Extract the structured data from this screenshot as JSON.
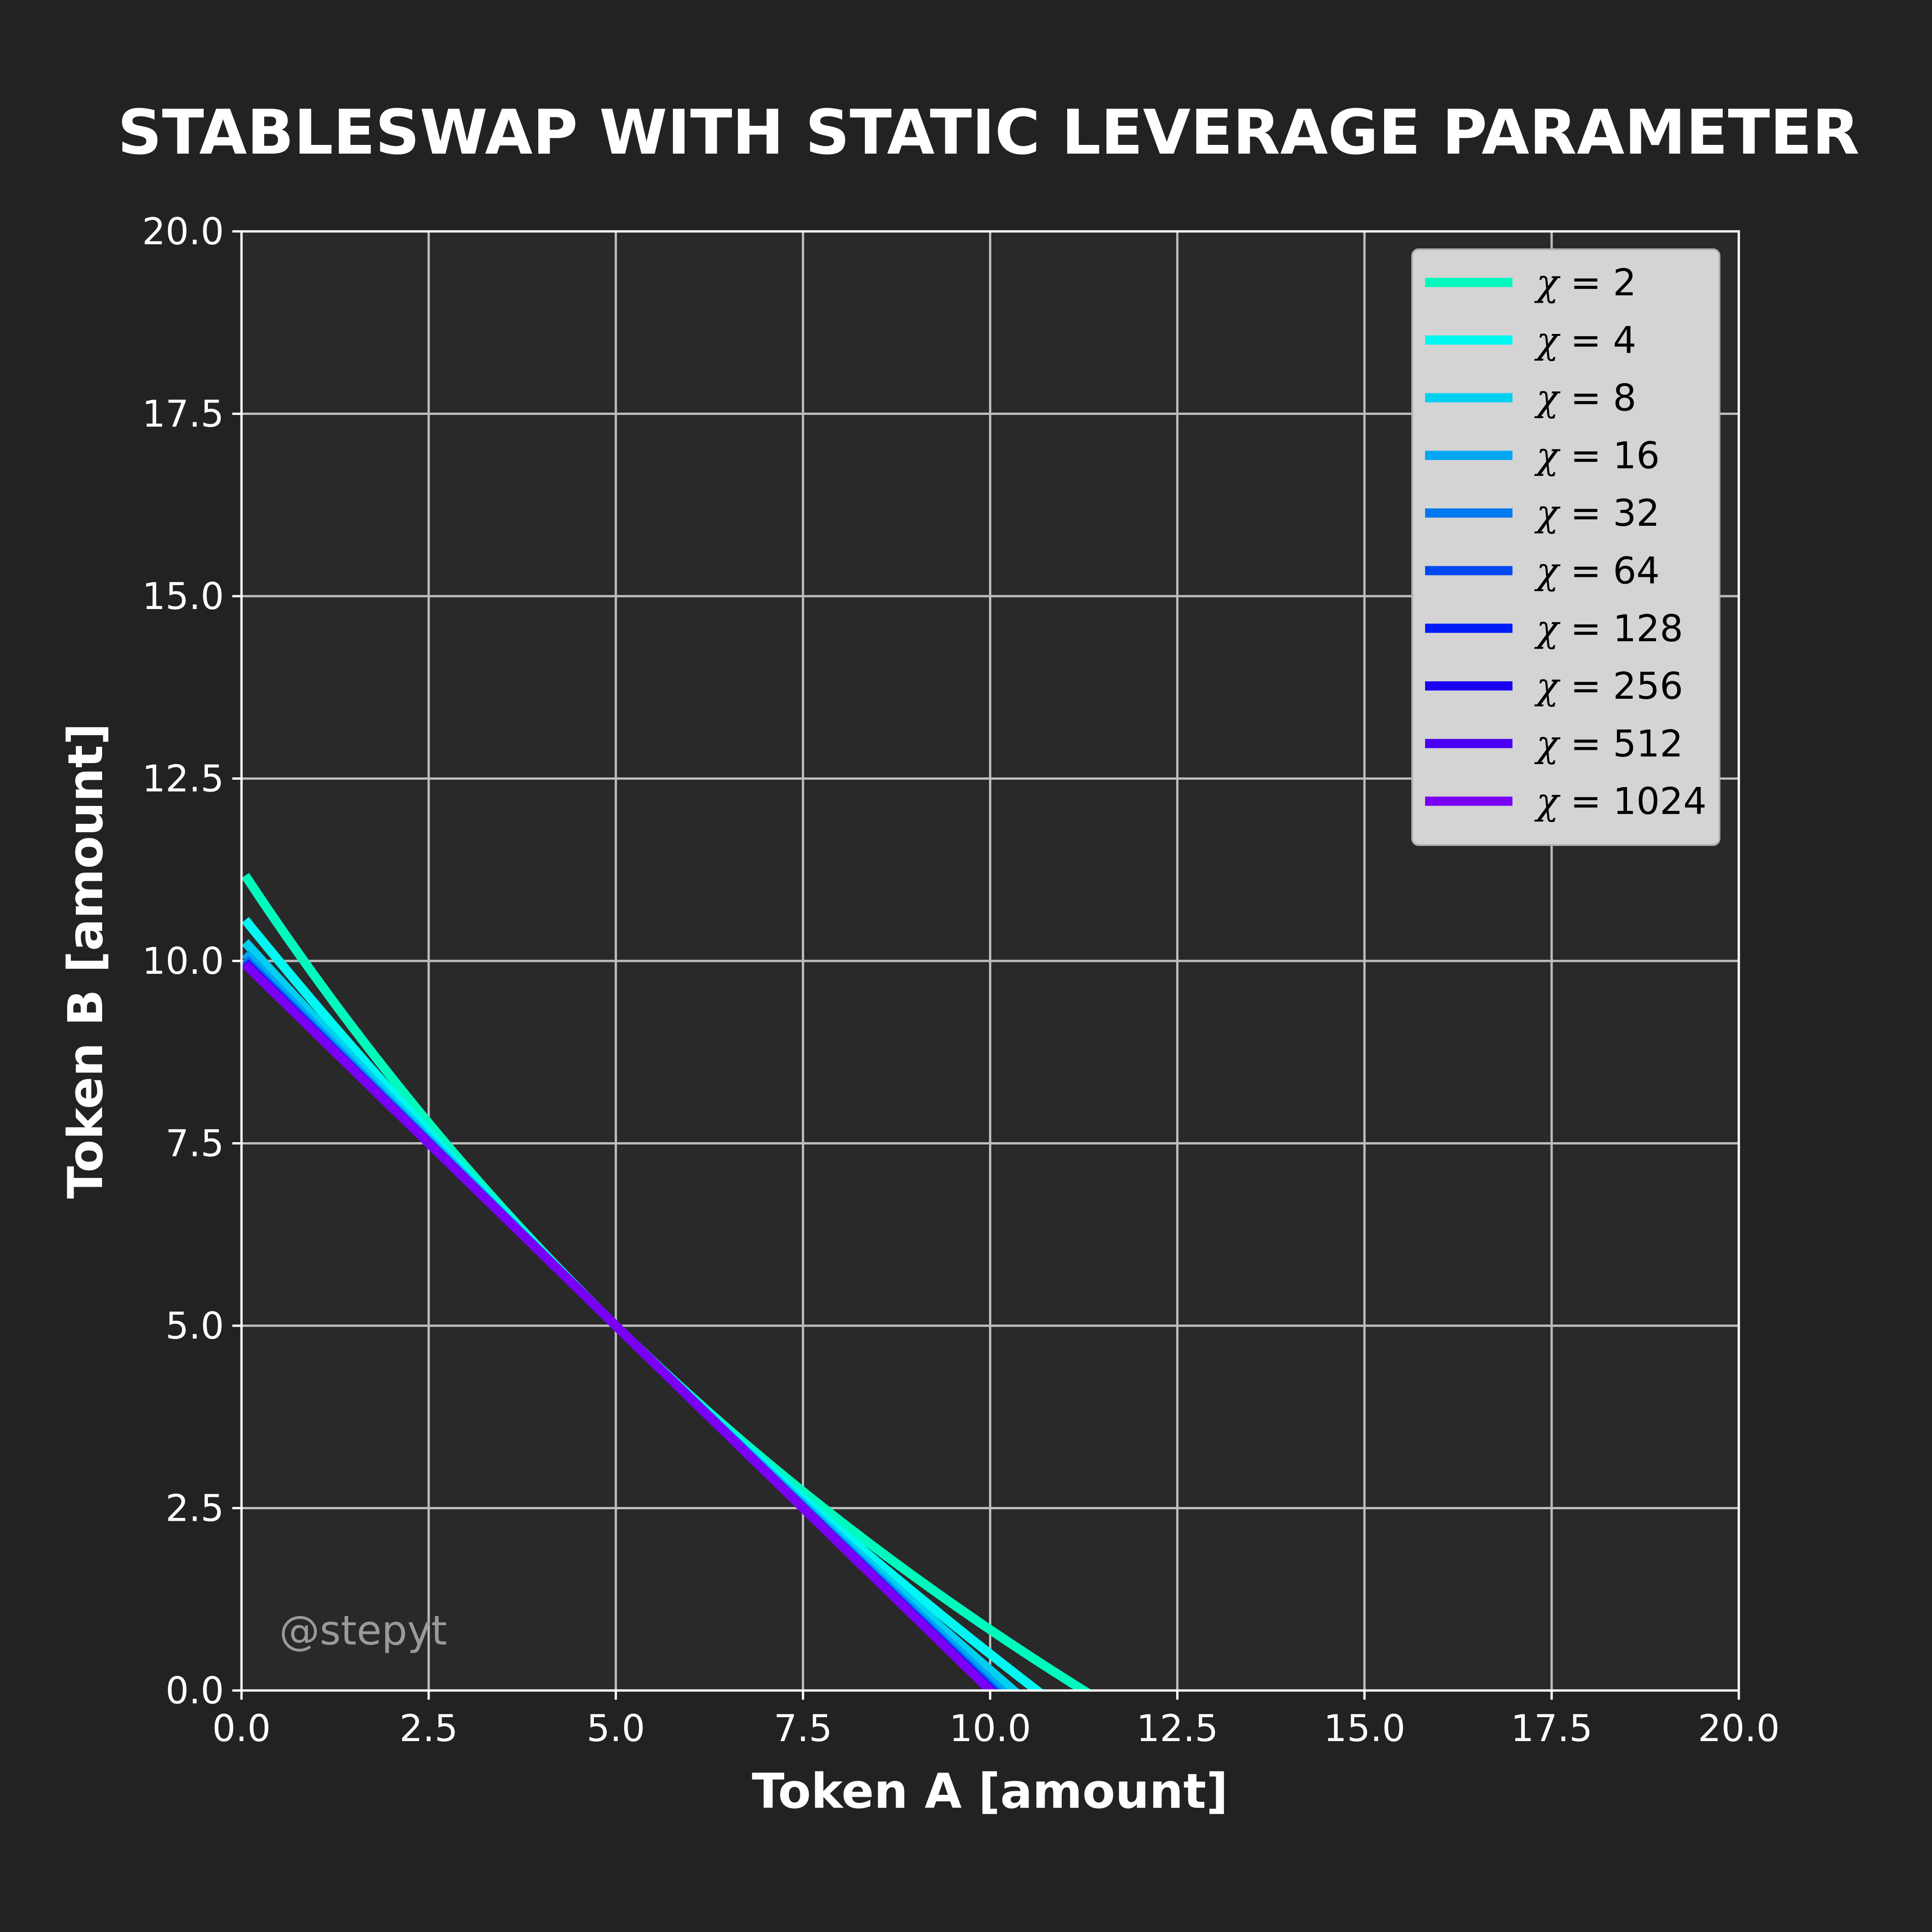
{
  "chart_data": {
    "type": "line",
    "title": "STABLESWAP WITH STATIC LEVERAGE PARAMETER",
    "xlabel": "Token A [amount]",
    "ylabel": "Token B [amount]",
    "xlim": [
      0,
      20
    ],
    "ylim": [
      0,
      20
    ],
    "xticks": [
      "0.0",
      "2.5",
      "5.0",
      "7.5",
      "10.0",
      "12.5",
      "15.0",
      "17.5",
      "20.0"
    ],
    "yticks": [
      "0.0",
      "2.5",
      "5.0",
      "7.5",
      "10.0",
      "12.5",
      "15.0",
      "17.5",
      "20.0"
    ],
    "grid": true,
    "legend_position": "top-right",
    "watermark": "@stepyt",
    "legend_symbol": "χ",
    "legend_equals": " = ",
    "series": [
      {
        "name": "χ = 2",
        "chi": 2,
        "value_label": "2",
        "color": "#00fabe"
      },
      {
        "name": "χ = 4",
        "chi": 4,
        "value_label": "4",
        "color": "#00f7f2"
      },
      {
        "name": "χ = 8",
        "chi": 8,
        "value_label": "8",
        "color": "#00d0f0"
      },
      {
        "name": "χ = 16",
        "chi": 16,
        "value_label": "16",
        "color": "#00a6f2"
      },
      {
        "name": "χ = 32",
        "chi": 32,
        "value_label": "32",
        "color": "#0079f0"
      },
      {
        "name": "χ = 64",
        "chi": 64,
        "value_label": "64",
        "color": "#0049f2"
      },
      {
        "name": "χ = 128",
        "chi": 128,
        "value_label": "128",
        "color": "#001bf5"
      },
      {
        "name": "χ = 256",
        "chi": 256,
        "value_label": "256",
        "color": "#1a00f0"
      },
      {
        "name": "χ = 512",
        "chi": 512,
        "value_label": "512",
        "color": "#4a00f2"
      },
      {
        "name": "χ = 1024",
        "chi": 1024,
        "value_label": "1024",
        "color": "#7a00f5"
      }
    ],
    "colors": {
      "background": "#222222",
      "plot_background": "#292929",
      "grid": "#bdbdbd",
      "axes": "#ffffff",
      "legend_background": "#d4d4d4",
      "legend_border": "#b0b0b0"
    }
  }
}
